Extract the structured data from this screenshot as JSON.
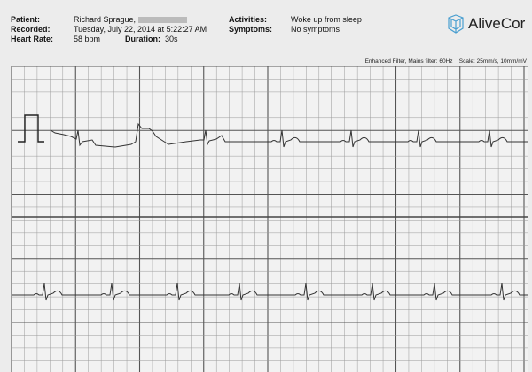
{
  "header": {
    "patient_label": "Patient:",
    "patient_value": "Richard Sprague,",
    "recorded_label": "Recorded:",
    "recorded_value": "Tuesday, July 22, 2014 at 5:22:27 AM",
    "heart_rate_label": "Heart Rate:",
    "heart_rate_value": "58 bpm",
    "duration_label": "Duration:",
    "duration_value": "30s",
    "activities_label": "Activities:",
    "activities_value": "Woke up from sleep",
    "symptoms_label": "Symptoms:",
    "symptoms_value": "No symptoms"
  },
  "brand": {
    "name": "AliveCor",
    "color": "#4a9fd0"
  },
  "filter_text": "Enhanced Filter, Mains filter: 60Hz    Scale: 25mm/s, 10mm/mV",
  "colors": {
    "grid_minor": "#9a9a9a",
    "grid_major": "#555555",
    "trace": "#333333"
  }
}
